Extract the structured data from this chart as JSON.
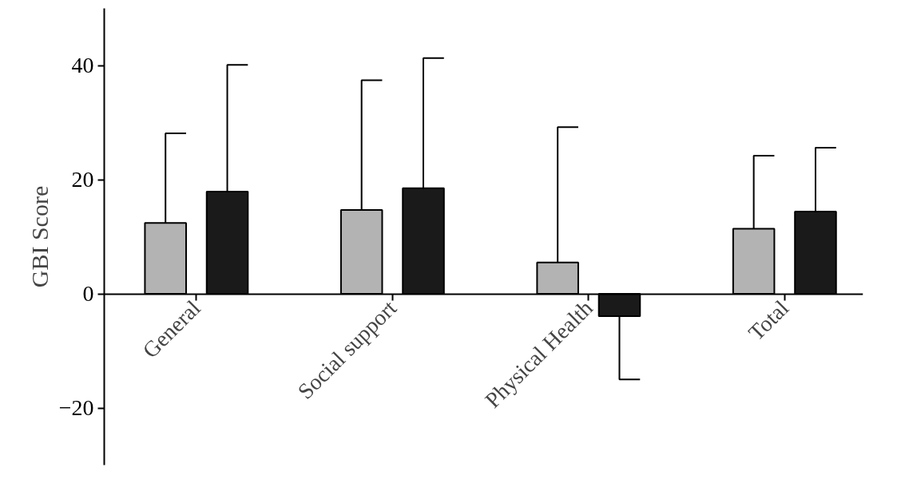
{
  "chart_data": {
    "type": "bar",
    "ylabel": "GBI Score",
    "categories": [
      "General",
      "Social support",
      "Physical Health",
      "Total"
    ],
    "series": [
      {
        "color": "#b3b3b3",
        "values": [
          12.4,
          14.7,
          5.5,
          11.4
        ],
        "errors": [
          [
            12.4,
            28.1
          ],
          [
            14.7,
            37.4
          ],
          [
            5.5,
            29.2
          ],
          [
            11.4,
            24.2
          ]
        ]
      },
      {
        "color": "#1a1a1a",
        "values": [
          17.9,
          18.5,
          -3.9,
          14.4
        ],
        "errors": [
          [
            17.9,
            40.1
          ],
          [
            18.5,
            41.3
          ],
          [
            -15,
            -3.9
          ],
          [
            14.4,
            25.6
          ]
        ]
      }
    ],
    "ylim": [
      -30,
      50
    ],
    "yticks": [
      -20,
      0,
      20,
      40
    ],
    "grid": false
  }
}
